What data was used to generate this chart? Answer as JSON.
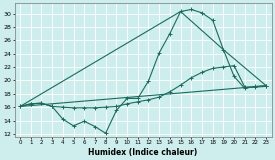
{
  "xlabel": "Humidex (Indice chaleur)",
  "xlim": [
    -0.5,
    23.5
  ],
  "ylim": [
    11.5,
    31.5
  ],
  "yticks": [
    12,
    14,
    16,
    18,
    20,
    22,
    24,
    26,
    28,
    30
  ],
  "xticks": [
    0,
    1,
    2,
    3,
    4,
    5,
    6,
    7,
    8,
    9,
    10,
    11,
    12,
    13,
    14,
    15,
    16,
    17,
    18,
    19,
    20,
    21,
    22,
    23
  ],
  "bg_color": "#ceeeed",
  "line_color": "#1a6b5e",
  "grid_color": "#b8dedd",
  "series": {
    "line1_zigzag": {
      "x": [
        0,
        1,
        2,
        3,
        4,
        5,
        6,
        7,
        8,
        9,
        10,
        11,
        12,
        13,
        14,
        15,
        16,
        17,
        18,
        19,
        20,
        21,
        22,
        23
      ],
      "y": [
        16.1,
        16.5,
        16.6,
        16.1,
        14.2,
        13.2,
        13.9,
        13.1,
        12.1,
        15.5,
        17.3,
        17.3,
        19.9,
        24.1,
        27.0,
        30.3,
        30.6,
        30.1,
        29.0,
        24.6,
        20.6,
        18.8,
        19.1,
        19.2
      ]
    },
    "line2_smooth": {
      "x": [
        0,
        1,
        2,
        3,
        4,
        5,
        6,
        7,
        8,
        9,
        10,
        11,
        12,
        13,
        14,
        15,
        16,
        17,
        18,
        19,
        20,
        21,
        22,
        23
      ],
      "y": [
        16.1,
        16.5,
        16.6,
        16.1,
        16.0,
        15.9,
        15.9,
        15.9,
        16.0,
        16.1,
        16.5,
        16.8,
        17.1,
        17.5,
        18.3,
        19.3,
        20.4,
        21.2,
        21.8,
        22.0,
        22.2,
        19.0,
        19.0,
        19.1
      ]
    },
    "line3_straight": {
      "x": [
        0,
        23
      ],
      "y": [
        16.1,
        19.2
      ]
    },
    "line4_triangle": {
      "x": [
        0,
        15,
        19,
        23
      ],
      "y": [
        16.1,
        30.3,
        24.6,
        19.2
      ]
    }
  }
}
